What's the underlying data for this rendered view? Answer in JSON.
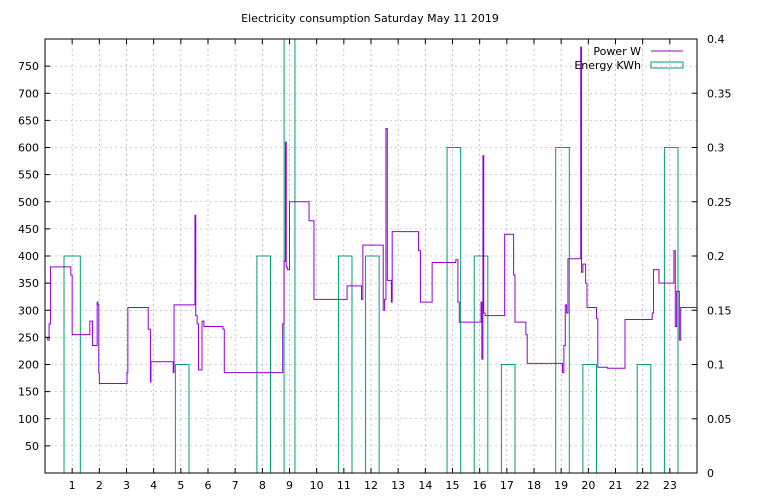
{
  "chart_data": {
    "type": "line",
    "title": "Electricity consumption Saturday May 11 2019",
    "x_ticks": [
      "1",
      "2",
      "3",
      "4",
      "5",
      "6",
      "7",
      "8",
      "9",
      "10",
      "11",
      "12",
      "13",
      "14",
      "15",
      "16",
      "17",
      "18",
      "19",
      "20",
      "21",
      "22",
      "23"
    ],
    "xlim": [
      0,
      24
    ],
    "y_ticks": [
      "50",
      "100",
      "150",
      "200",
      "250",
      "300",
      "350",
      "400",
      "450",
      "500",
      "550",
      "600",
      "650",
      "700",
      "750"
    ],
    "ylim": [
      0,
      800
    ],
    "y2_ticks": [
      "0",
      "0.05",
      "0.1",
      "0.15",
      "0.2",
      "0.25",
      "0.3",
      "0.35",
      "0.4"
    ],
    "y2lim": [
      0,
      0.4
    ],
    "grid": true,
    "legend": "top-right",
    "colors": {
      "power": "#9400d3",
      "energy": "#009e73"
    },
    "series": [
      {
        "name": "Power W",
        "axis": "y",
        "style": "step",
        "points": [
          [
            0.0,
            250
          ],
          [
            0.1,
            245
          ],
          [
            0.15,
            275
          ],
          [
            0.2,
            380
          ],
          [
            0.9,
            380
          ],
          [
            0.95,
            365
          ],
          [
            1.0,
            255
          ],
          [
            1.6,
            255
          ],
          [
            1.65,
            280
          ],
          [
            1.75,
            235
          ],
          [
            1.9,
            235
          ],
          [
            1.92,
            315
          ],
          [
            1.95,
            310
          ],
          [
            1.98,
            185
          ],
          [
            2.0,
            165
          ],
          [
            3.0,
            165
          ],
          [
            3.02,
            185
          ],
          [
            3.05,
            305
          ],
          [
            3.75,
            305
          ],
          [
            3.8,
            265
          ],
          [
            3.88,
            168
          ],
          [
            3.9,
            205
          ],
          [
            4.7,
            205
          ],
          [
            4.72,
            185
          ],
          [
            4.75,
            310
          ],
          [
            5.5,
            310
          ],
          [
            5.52,
            475
          ],
          [
            5.55,
            290
          ],
          [
            5.6,
            275
          ],
          [
            5.65,
            190
          ],
          [
            5.75,
            190
          ],
          [
            5.78,
            280
          ],
          [
            5.85,
            270
          ],
          [
            6.5,
            270
          ],
          [
            6.55,
            265
          ],
          [
            6.6,
            185
          ],
          [
            8.7,
            185
          ],
          [
            8.75,
            275
          ],
          [
            8.8,
            390
          ],
          [
            8.85,
            610
          ],
          [
            8.88,
            380
          ],
          [
            8.92,
            375
          ],
          [
            9.0,
            500
          ],
          [
            9.7,
            500
          ],
          [
            9.72,
            465
          ],
          [
            9.9,
            320
          ],
          [
            11.1,
            320
          ],
          [
            11.12,
            345
          ],
          [
            11.6,
            345
          ],
          [
            11.65,
            320
          ],
          [
            11.7,
            420
          ],
          [
            12.4,
            420
          ],
          [
            12.45,
            300
          ],
          [
            12.5,
            320
          ],
          [
            12.55,
            635
          ],
          [
            12.6,
            355
          ],
          [
            12.75,
            315
          ],
          [
            12.78,
            445
          ],
          [
            13.7,
            445
          ],
          [
            13.75,
            410
          ],
          [
            13.82,
            315
          ],
          [
            14.2,
            315
          ],
          [
            14.25,
            388
          ],
          [
            15.1,
            388
          ],
          [
            15.12,
            393
          ],
          [
            15.2,
            315
          ],
          [
            15.25,
            278
          ],
          [
            16.0,
            278
          ],
          [
            16.05,
            315
          ],
          [
            16.08,
            210
          ],
          [
            16.12,
            585
          ],
          [
            16.15,
            295
          ],
          [
            16.2,
            290
          ],
          [
            16.9,
            290
          ],
          [
            16.92,
            440
          ],
          [
            17.2,
            440
          ],
          [
            17.25,
            365
          ],
          [
            17.3,
            278
          ],
          [
            17.65,
            278
          ],
          [
            17.7,
            255
          ],
          [
            17.75,
            202
          ],
          [
            19.0,
            202
          ],
          [
            19.05,
            185
          ],
          [
            19.1,
            235
          ],
          [
            19.15,
            310
          ],
          [
            19.2,
            295
          ],
          [
            19.25,
            395
          ],
          [
            19.7,
            395
          ],
          [
            19.72,
            785
          ],
          [
            19.75,
            370
          ],
          [
            19.8,
            385
          ],
          [
            19.9,
            350
          ],
          [
            19.95,
            305
          ],
          [
            20.25,
            305
          ],
          [
            20.3,
            285
          ],
          [
            20.35,
            195
          ],
          [
            20.7,
            193
          ],
          [
            21.3,
            193
          ],
          [
            21.35,
            283
          ],
          [
            22.3,
            283
          ],
          [
            22.35,
            295
          ],
          [
            22.4,
            375
          ],
          [
            22.55,
            375
          ],
          [
            22.6,
            350
          ],
          [
            23.1,
            350
          ],
          [
            23.15,
            410
          ],
          [
            23.2,
            270
          ],
          [
            23.25,
            335
          ],
          [
            23.35,
            245
          ],
          [
            23.4,
            305
          ],
          [
            24.0,
            305
          ]
        ]
      },
      {
        "name": "Energy KWh",
        "axis": "y2",
        "style": "boxes",
        "boxes": [
          [
            0.7,
            1.3,
            0.2
          ],
          [
            4.8,
            5.3,
            0.1
          ],
          [
            7.8,
            8.3,
            0.2
          ],
          [
            8.8,
            9.2,
            0.4
          ],
          [
            10.8,
            11.3,
            0.2
          ],
          [
            11.8,
            12.3,
            0.2
          ],
          [
            14.8,
            15.3,
            0.3
          ],
          [
            15.8,
            16.3,
            0.2
          ],
          [
            16.8,
            17.3,
            0.1
          ],
          [
            18.8,
            19.3,
            0.3
          ],
          [
            19.8,
            20.3,
            0.1
          ],
          [
            21.8,
            22.3,
            0.1
          ],
          [
            22.8,
            23.3,
            0.3
          ]
        ]
      }
    ]
  }
}
